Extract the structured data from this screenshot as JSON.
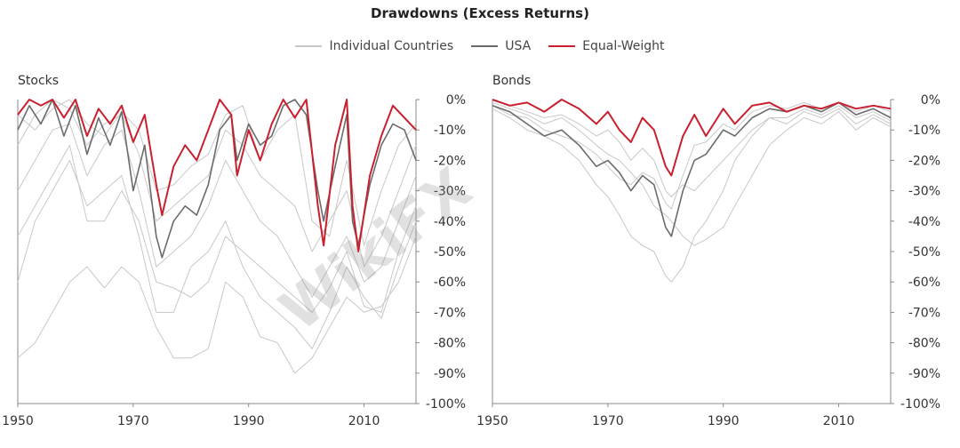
{
  "title": "Drawdowns (Excess Returns)",
  "legend": [
    {
      "label": "Individual Countries",
      "color": "#c8c8c8"
    },
    {
      "label": "USA",
      "color": "#6b6b6b"
    },
    {
      "label": "Equal-Weight",
      "color": "#c8202f"
    }
  ],
  "colors": {
    "countries": "#c8c8c8",
    "usa": "#6b6b6b",
    "equal_weight": "#c8202f",
    "axis": "#888888"
  },
  "watermark": "WikiFX",
  "chart_data": [
    {
      "type": "line",
      "title": "Stocks",
      "xlim": [
        1950,
        2019
      ],
      "ylim": [
        -100,
        0
      ],
      "x_ticks": [
        1950,
        1970,
        1990,
        2010
      ],
      "x_tick_labels": [
        "1950",
        "1970",
        "1990",
        "2010"
      ],
      "y_ticks": [
        0,
        -10,
        -20,
        -30,
        -40,
        -50,
        -60,
        -70,
        -80,
        -90,
        -100
      ],
      "y_tick_labels": [
        "0%",
        "-10%",
        "-20%",
        "-30%",
        "-40%",
        "-50%",
        "-60%",
        "-70%",
        "-80%",
        "-90%",
        "-100%"
      ],
      "series": [
        {
          "name": "Equal-Weight",
          "x": [
            1950,
            1952,
            1954,
            1956,
            1958,
            1960,
            1962,
            1964,
            1966,
            1968,
            1970,
            1972,
            1974,
            1975,
            1977,
            1979,
            1981,
            1983,
            1985,
            1987,
            1988,
            1990,
            1992,
            1994,
            1996,
            1998,
            2000,
            2002,
            2003,
            2005,
            2007,
            2008,
            2009,
            2011,
            2013,
            2015,
            2017,
            2019
          ],
          "y": [
            -5,
            0,
            -2,
            0,
            -6,
            0,
            -12,
            -3,
            -8,
            -2,
            -14,
            -5,
            -28,
            -38,
            -22,
            -15,
            -20,
            -10,
            0,
            -5,
            -25,
            -10,
            -20,
            -8,
            0,
            -6,
            0,
            -35,
            -48,
            -15,
            0,
            -35,
            -50,
            -25,
            -12,
            -2,
            -6,
            -10
          ]
        },
        {
          "name": "USA",
          "x": [
            1950,
            1952,
            1954,
            1956,
            1958,
            1960,
            1962,
            1964,
            1966,
            1968,
            1970,
            1972,
            1974,
            1975,
            1977,
            1979,
            1981,
            1983,
            1985,
            1987,
            1988,
            1990,
            1992,
            1994,
            1996,
            1998,
            2000,
            2002,
            2003,
            2005,
            2007,
            2008,
            2009,
            2011,
            2013,
            2015,
            2017,
            2019
          ],
          "y": [
            -10,
            -2,
            -8,
            0,
            -12,
            -2,
            -18,
            -6,
            -15,
            -4,
            -30,
            -15,
            -45,
            -52,
            -40,
            -35,
            -38,
            -28,
            -10,
            -5,
            -20,
            -8,
            -15,
            -12,
            -2,
            0,
            -5,
            -30,
            -40,
            -22,
            -5,
            -40,
            -48,
            -28,
            -15,
            -8,
            -10,
            -20
          ]
        },
        {
          "name": "",
          "x": [
            1950,
            1953,
            1956,
            1959,
            1962,
            1965,
            1968,
            1971,
            1974,
            1977,
            1980,
            1983,
            1986,
            1989,
            1992,
            1995,
            1998,
            2001,
            2004,
            2007,
            2010,
            2013,
            2016,
            2019
          ],
          "y": [
            -85,
            -80,
            -70,
            -60,
            -55,
            -62,
            -55,
            -60,
            -75,
            -85,
            -85,
            -82,
            -60,
            -65,
            -78,
            -80,
            -90,
            -85,
            -75,
            -65,
            -70,
            -68,
            -60,
            -45
          ]
        },
        {
          "name": "",
          "x": [
            1950,
            1953,
            1956,
            1959,
            1962,
            1965,
            1968,
            1971,
            1974,
            1977,
            1980,
            1983,
            1986,
            1989,
            1992,
            1995,
            1998,
            2001,
            2004,
            2007,
            2010,
            2013,
            2016,
            2019
          ],
          "y": [
            -60,
            -40,
            -30,
            -20,
            -35,
            -30,
            -25,
            -45,
            -70,
            -70,
            -55,
            -50,
            -40,
            -55,
            -65,
            -70,
            -75,
            -82,
            -70,
            -55,
            -65,
            -72,
            -55,
            -40
          ]
        },
        {
          "name": "",
          "x": [
            1950,
            1953,
            1956,
            1959,
            1962,
            1965,
            1968,
            1971,
            1974,
            1977,
            1980,
            1983,
            1986,
            1989,
            1992,
            1995,
            1998,
            2001,
            2004,
            2007,
            2010,
            2013,
            2016,
            2019
          ],
          "y": [
            -30,
            -20,
            -10,
            -8,
            -25,
            -15,
            -10,
            -30,
            -55,
            -50,
            -45,
            -35,
            -20,
            -30,
            -40,
            -45,
            -55,
            -65,
            -55,
            -45,
            -60,
            -55,
            -40,
            -25
          ]
        },
        {
          "name": "",
          "x": [
            1950,
            1953,
            1956,
            1959,
            1962,
            1965,
            1968,
            1971,
            1974,
            1977,
            1980,
            1983,
            1986,
            1989,
            1992,
            1995,
            1998,
            2001,
            2004,
            2007,
            2010,
            2013,
            2016,
            2019
          ],
          "y": [
            -15,
            -5,
            0,
            -3,
            -15,
            -8,
            -5,
            -18,
            -40,
            -35,
            -30,
            -25,
            -10,
            -15,
            -25,
            -30,
            -35,
            -50,
            -40,
            -30,
            -55,
            -45,
            -30,
            -15
          ]
        },
        {
          "name": "",
          "x": [
            1950,
            1953,
            1956,
            1959,
            1962,
            1965,
            1968,
            1971,
            1974,
            1977,
            1980,
            1983,
            1986,
            1989,
            1992,
            1995,
            1998,
            2001,
            2004,
            2007,
            2010,
            2013,
            2016,
            2019
          ],
          "y": [
            -45,
            -35,
            -25,
            -15,
            -40,
            -40,
            -30,
            -40,
            -60,
            -62,
            -65,
            -60,
            -45,
            -50,
            -55,
            -60,
            -65,
            -70,
            -62,
            -50,
            -68,
            -70,
            -50,
            -35
          ]
        },
        {
          "name": "",
          "x": [
            1950,
            1953,
            1956,
            1959,
            1962,
            1965,
            1968,
            1971,
            1974,
            1977,
            1980,
            1983,
            1986,
            1989,
            1992,
            1995,
            1998,
            2001,
            2004,
            2007,
            2010,
            2013,
            2016,
            2019
          ],
          "y": [
            -5,
            -10,
            -3,
            0,
            -8,
            -12,
            -4,
            -10,
            -30,
            -28,
            -22,
            -18,
            -5,
            -2,
            -20,
            -10,
            -5,
            -40,
            -45,
            -20,
            -48,
            -30,
            -15,
            -8
          ]
        }
      ]
    },
    {
      "type": "line",
      "title": "Bonds",
      "xlim": [
        1950,
        2019
      ],
      "ylim": [
        -100,
        0
      ],
      "x_ticks": [
        1950,
        1970,
        1990,
        2010
      ],
      "x_tick_labels": [
        "1950",
        "1970",
        "1990",
        "2010"
      ],
      "y_ticks": [
        0,
        -10,
        -20,
        -30,
        -40,
        -50,
        -60,
        -70,
        -80,
        -90,
        -100
      ],
      "y_tick_labels": [
        "0%",
        "-10%",
        "-20%",
        "-30%",
        "-40%",
        "-50%",
        "-60%",
        "-70%",
        "-80%",
        "-90%",
        "-100%"
      ],
      "series": [
        {
          "name": "Equal-Weight",
          "x": [
            1950,
            1953,
            1956,
            1959,
            1962,
            1965,
            1968,
            1970,
            1972,
            1974,
            1976,
            1978,
            1980,
            1981,
            1983,
            1985,
            1987,
            1990,
            1992,
            1995,
            1998,
            2001,
            2004,
            2007,
            2010,
            2013,
            2016,
            2019
          ],
          "y": [
            0,
            -2,
            -1,
            -4,
            0,
            -3,
            -8,
            -4,
            -10,
            -14,
            -6,
            -10,
            -22,
            -25,
            -12,
            -5,
            -12,
            -3,
            -8,
            -2,
            -1,
            -4,
            -2,
            -3,
            -1,
            -3,
            -2,
            -3
          ]
        },
        {
          "name": "USA",
          "x": [
            1950,
            1953,
            1956,
            1959,
            1962,
            1965,
            1968,
            1970,
            1972,
            1974,
            1976,
            1978,
            1980,
            1981,
            1983,
            1985,
            1987,
            1990,
            1992,
            1995,
            1998,
            2001,
            2004,
            2007,
            2010,
            2013,
            2016,
            2019
          ],
          "y": [
            -2,
            -4,
            -8,
            -12,
            -10,
            -15,
            -22,
            -20,
            -24,
            -30,
            -25,
            -28,
            -42,
            -45,
            -30,
            -20,
            -18,
            -10,
            -12,
            -6,
            -3,
            -4,
            -2,
            -4,
            -1,
            -5,
            -3,
            -6
          ]
        },
        {
          "name": "",
          "x": [
            1950,
            1953,
            1956,
            1959,
            1962,
            1965,
            1968,
            1970,
            1972,
            1974,
            1976,
            1978,
            1980,
            1981,
            1983,
            1985,
            1987,
            1990,
            1992,
            1995,
            1998,
            2001,
            2004,
            2007,
            2010,
            2013,
            2016,
            2019
          ],
          "y": [
            -3,
            -6,
            -10,
            -12,
            -15,
            -20,
            -28,
            -32,
            -38,
            -45,
            -48,
            -50,
            -58,
            -60,
            -55,
            -45,
            -40,
            -30,
            -20,
            -12,
            -6,
            -8,
            -4,
            -6,
            -3,
            -8,
            -5,
            -8
          ]
        },
        {
          "name": "",
          "x": [
            1950,
            1953,
            1956,
            1959,
            1962,
            1965,
            1968,
            1970,
            1972,
            1974,
            1976,
            1978,
            1980,
            1981,
            1983,
            1985,
            1987,
            1990,
            1992,
            1995,
            1998,
            2001,
            2004,
            2007,
            2010,
            2013,
            2016,
            2019
          ],
          "y": [
            -1,
            -3,
            -5,
            -8,
            -6,
            -10,
            -15,
            -18,
            -20,
            -24,
            -28,
            -35,
            -38,
            -40,
            -45,
            -48,
            -46,
            -42,
            -35,
            -25,
            -15,
            -10,
            -6,
            -8,
            -4,
            -10,
            -6,
            -9
          ]
        },
        {
          "name": "",
          "x": [
            1950,
            1953,
            1956,
            1959,
            1962,
            1965,
            1968,
            1970,
            1972,
            1974,
            1976,
            1978,
            1980,
            1981,
            1983,
            1985,
            1987,
            1990,
            1992,
            1995,
            1998,
            2001,
            2004,
            2007,
            2010,
            2013,
            2016,
            2019
          ],
          "y": [
            0,
            -2,
            -4,
            -6,
            -5,
            -8,
            -12,
            -10,
            -14,
            -20,
            -16,
            -20,
            -30,
            -32,
            -28,
            -30,
            -26,
            -20,
            -16,
            -10,
            -6,
            -6,
            -3,
            -5,
            -2,
            -6,
            -4,
            -7
          ]
        },
        {
          "name": "",
          "x": [
            1950,
            1953,
            1956,
            1959,
            1962,
            1965,
            1968,
            1970,
            1972,
            1974,
            1976,
            1978,
            1980,
            1981,
            1983,
            1985,
            1987,
            1990,
            1992,
            1995,
            1998,
            2001,
            2004,
            2007,
            2010,
            2013,
            2016,
            2019
          ],
          "y": [
            -2,
            -5,
            -6,
            -10,
            -12,
            -14,
            -18,
            -22,
            -26,
            -28,
            -24,
            -26,
            -34,
            -36,
            -25,
            -15,
            -14,
            -8,
            -10,
            -4,
            -2,
            -3,
            -1,
            -3,
            -1,
            -4,
            -2,
            -4
          ]
        }
      ]
    }
  ]
}
